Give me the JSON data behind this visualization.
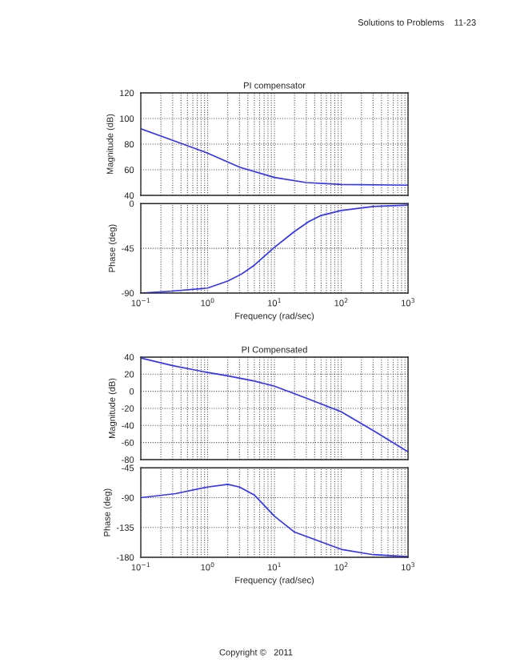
{
  "chart_data": [
    {
      "type": "line",
      "title": "PI compensator",
      "ylabel": "Magnitude (dB)",
      "tick_labels": "y",
      "grid": true,
      "log": "x",
      "annotations": [
        "Solutions to Problems    11-23"
      ],
      "xlim": [
        0.1,
        1000
      ],
      "xticks": [
        {
          "value": 0.1,
          "label": null
        },
        {
          "value": 1,
          "label": null
        },
        {
          "value": 10,
          "label": null
        },
        {
          "value": 100,
          "label": null
        },
        {
          "value": 1000,
          "label": null
        }
      ],
      "ylim": [
        40,
        120
      ],
      "yticks": [
        40,
        60,
        80,
        100,
        120
      ],
      "series": [
        {
          "color": "#3333ff",
          "x": [
            0.1,
            0.3,
            1,
            3,
            10,
            30,
            100,
            1000
          ],
          "values": [
            92,
            83,
            73,
            62,
            54,
            50,
            48.5,
            48
          ]
        }
      ]
    },
    {
      "type": "line",
      "xlabel": "Frequency (rad/sec)",
      "ylabel": "Phase (deg)",
      "grid": true,
      "log": "x",
      "xlim": [
        0.1,
        1000
      ],
      "xticks": [
        {
          "value": 0.1,
          "label": "10$^{−1}$"
        },
        {
          "value": 1,
          "label": "10$^{0}$"
        },
        {
          "value": 10,
          "label": "10$^{1}$"
        },
        {
          "value": 100,
          "label": "10$^{2}$"
        },
        {
          "value": 1000,
          "label": "10$^{3}$"
        }
      ],
      "ylim": [
        -90,
        0
      ],
      "yticks": [
        -90,
        -45,
        0
      ],
      "series": [
        {
          "color": "#3333ff",
          "x": [
            0.1,
            0.3,
            1,
            2,
            3.2,
            5,
            10,
            20,
            33,
            50,
            100,
            300,
            1000
          ],
          "values": [
            -90,
            -88,
            -85,
            -78,
            -71,
            -62,
            -44,
            -28,
            -18,
            -12,
            -7,
            -3,
            -1.5
          ]
        }
      ]
    },
    {
      "type": "line",
      "title": "PI Compensated",
      "ylabel": "Magnitude (dB)",
      "tick_labels": "y",
      "grid": true,
      "log": "x",
      "xlim": [
        0.1,
        1000
      ],
      "xticks": [
        {
          "value": 0.1,
          "label": null
        },
        {
          "value": 1,
          "label": null
        },
        {
          "value": 10,
          "label": null
        },
        {
          "value": 100,
          "label": null
        },
        {
          "value": 1000,
          "label": null
        }
      ],
      "ylim": [
        -80,
        40
      ],
      "yticks": [
        -80,
        -60,
        -40,
        -20,
        0,
        20,
        40
      ],
      "series": [
        {
          "color": "#3333ff",
          "x": [
            0.1,
            0.3,
            1,
            2,
            5,
            10,
            30,
            100,
            316,
            1000
          ],
          "values": [
            39,
            30,
            22,
            18,
            12,
            6,
            -8,
            -24,
            -47,
            -71
          ]
        }
      ]
    },
    {
      "type": "line",
      "xlabel": "Frequency (rad/sec)",
      "ylabel": "Phase (deg)",
      "grid": true,
      "log": "x",
      "annotations": [
        "Copyright ©   2011"
      ],
      "xlim": [
        0.1,
        1000
      ],
      "xticks": [
        {
          "value": 0.1,
          "label": "10$^{−1}$"
        },
        {
          "value": 1,
          "label": "10$^{0}$"
        },
        {
          "value": 10,
          "label": "10$^{1}$"
        },
        {
          "value": 100,
          "label": "10$^{2}$"
        },
        {
          "value": 1000,
          "label": "10$^{3}$"
        }
      ],
      "ylim": [
        -180,
        -45
      ],
      "yticks": [
        -180,
        -135,
        -90,
        -45
      ],
      "series": [
        {
          "color": "#3333ff",
          "x": [
            0.1,
            0.33,
            1,
            2,
            3,
            5,
            10,
            20,
            100,
            300,
            1000
          ],
          "values": [
            -90,
            -84,
            -74,
            -70,
            -74,
            -86,
            -118,
            -142,
            -168,
            -176,
            -179
          ]
        }
      ]
    }
  ]
}
